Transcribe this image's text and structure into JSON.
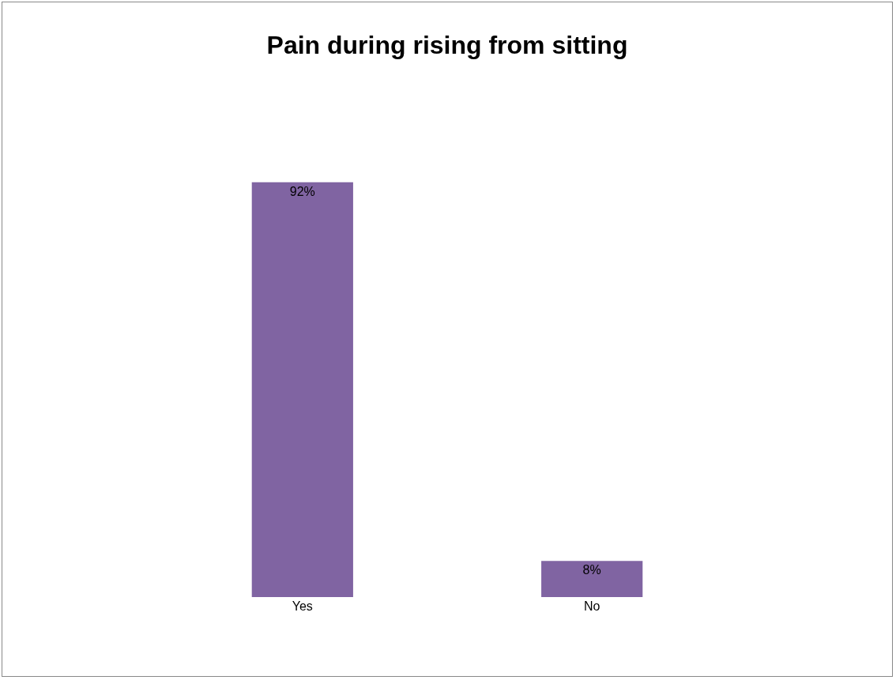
{
  "chart_data": {
    "type": "bar",
    "title": "Pain during rising from sitting",
    "categories": [
      "Yes",
      "No"
    ],
    "values": [
      92,
      8
    ],
    "value_labels": [
      "92%",
      "8%"
    ],
    "color": "#8064a2",
    "grid": false
  }
}
